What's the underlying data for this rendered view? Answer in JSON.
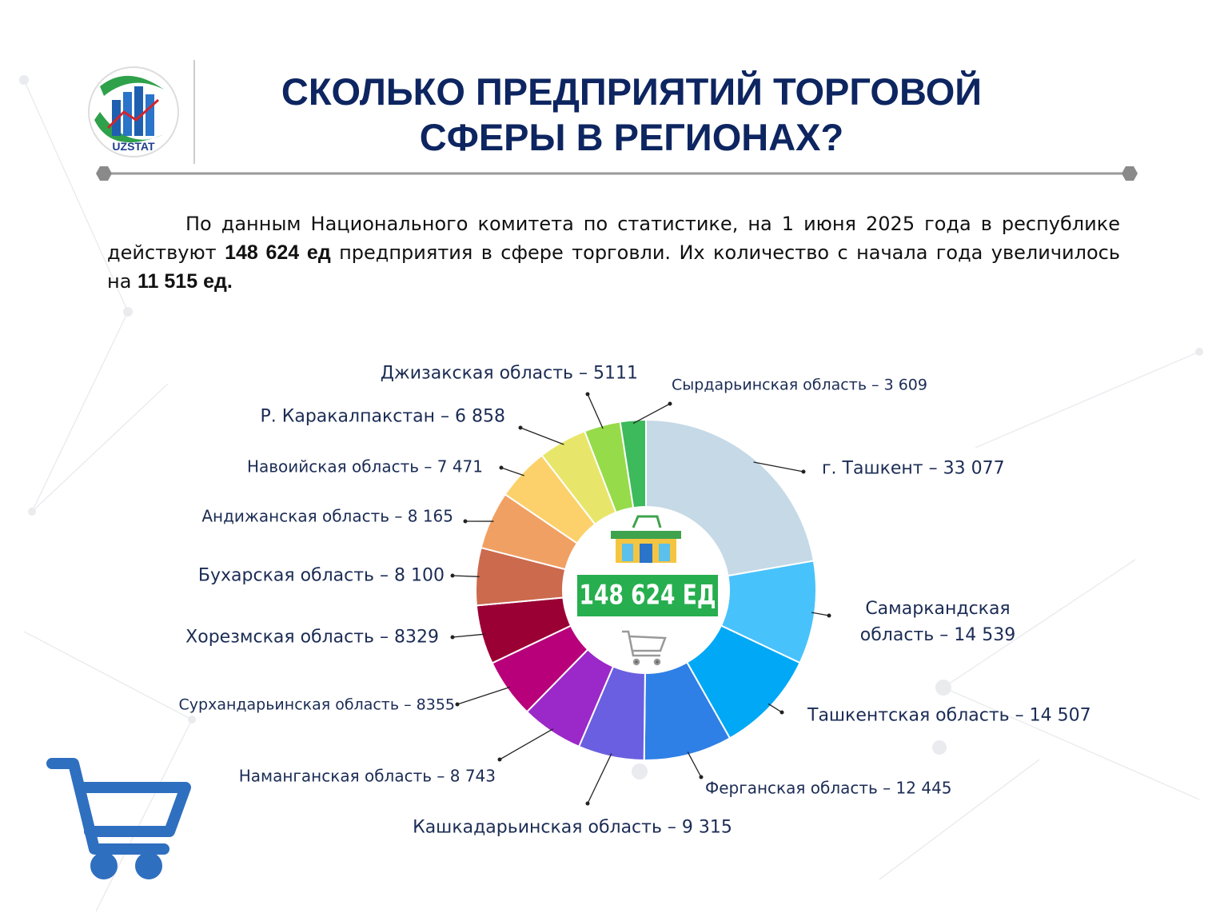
{
  "header": {
    "logo_text": "UZSTAT",
    "title": [
      "СКОЛЬКО ПРЕДПРИЯТИЙ ТОРГОВОЙ",
      "СФЕРЫ В РЕГИОНАХ?"
    ]
  },
  "paragraph": [
    {
      "text": "По данным Национального комитета по статистике, на 1 июня 2025 года в республике действуют ",
      "bold": false
    },
    {
      "text": "148 624 ед",
      "bold": true
    },
    {
      "text": " предприятия в сфере торговли. Их количество с начала года увеличилось на ",
      "bold": false
    },
    {
      "text": "11 515 ед.",
      "bold": true
    }
  ],
  "chart_data": {
    "type": "donut",
    "center_label": "148 624 ЕД",
    "labels": [
      "г. Ташкент – 33 077",
      "Самаркандская область – 14 539",
      "Ташкентская  область – 14 507",
      "Ферганская область – 12 445",
      "Кашкадарьинская область – 9 315",
      "Наманганская область – 8 743",
      "Сурхандарьинская область – 8355",
      "Хорезмская область – 8329",
      "Бухарская область – 8 100",
      "Андижанская область – 8 165",
      "Навоийская область – 7 471",
      "Р. Каракалпакстан – 6 858",
      "Джизакская область – 5111",
      "Сырдарьинская область – 3 609"
    ],
    "values": [
      33077,
      14539,
      14507,
      12445,
      9315,
      8743,
      8355,
      8329,
      8100,
      8165,
      7471,
      6858,
      5111,
      3609
    ],
    "colors": [
      "#c5d9e6",
      "#48c2fb",
      "#00a8f5",
      "#2e7fe6",
      "#6a5fe0",
      "#9b28c8",
      "#b8007a",
      "#9a0033",
      "#cc6a4e",
      "#f0a062",
      "#fcd16b",
      "#e8e66a",
      "#96db4a",
      "#3cba5c"
    ]
  }
}
